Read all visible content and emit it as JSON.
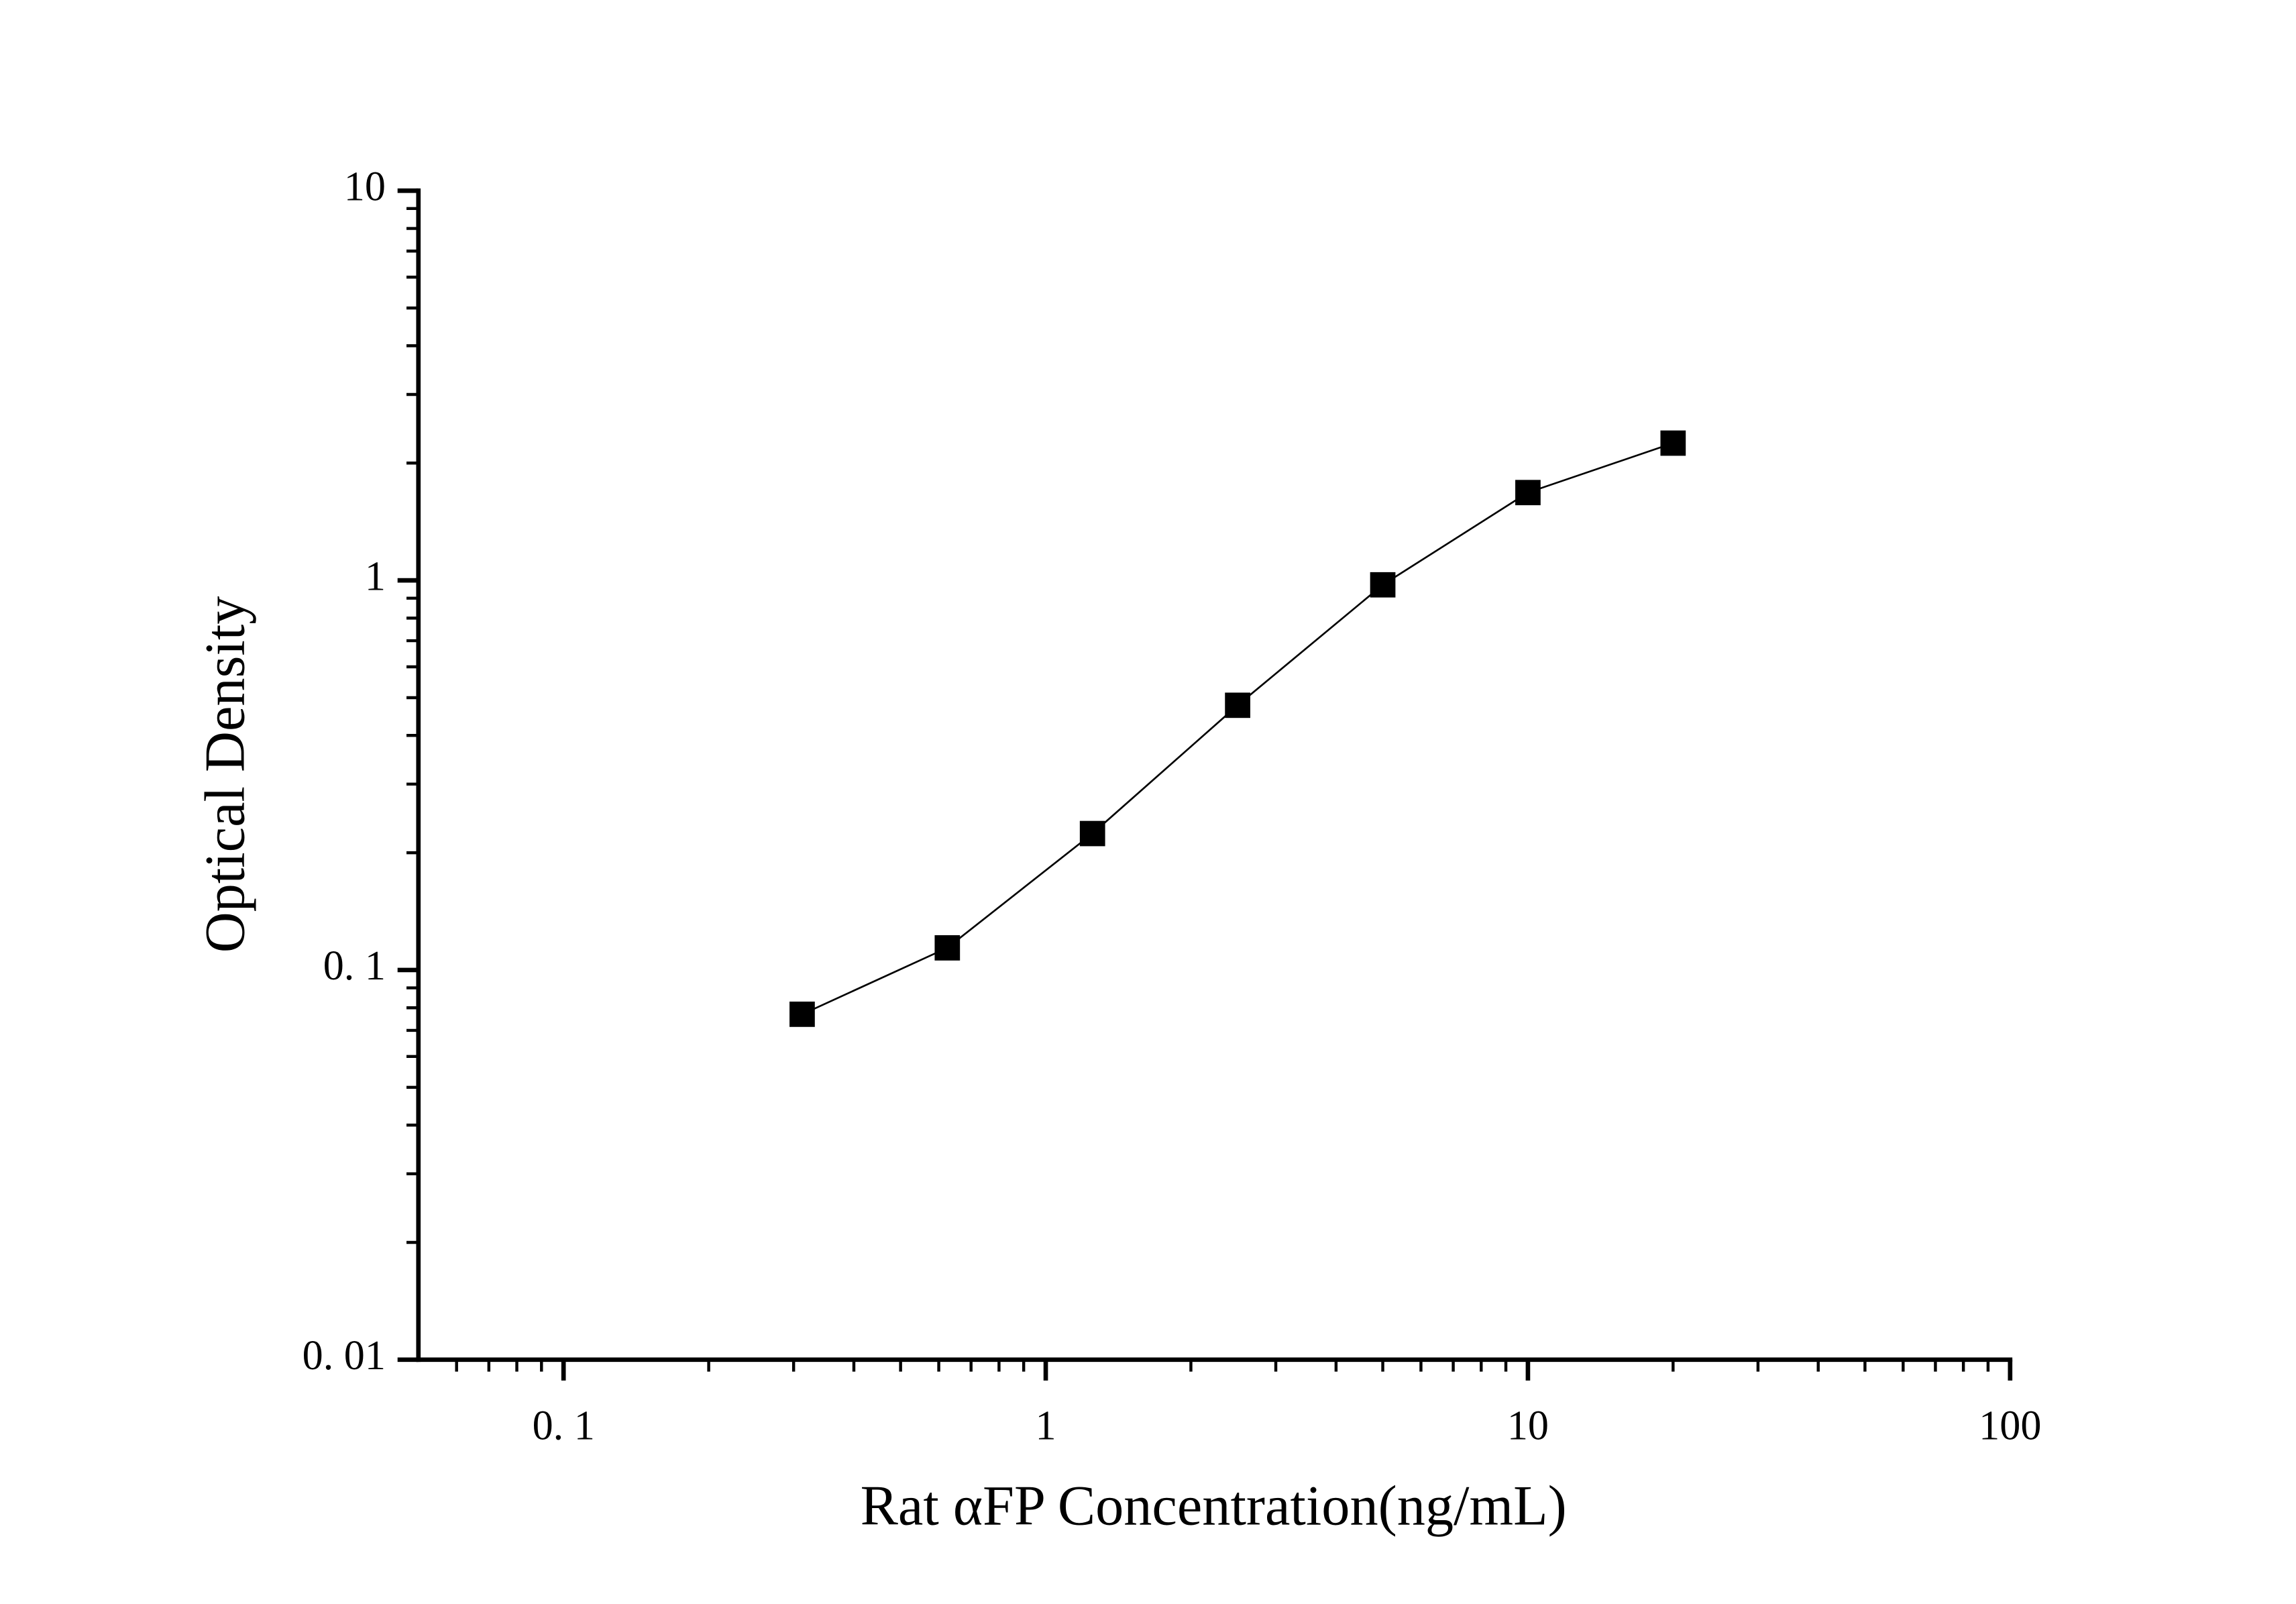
{
  "chart_data": {
    "type": "line",
    "x_label": "Rat αFP Concentration(ng/mL)",
    "y_label": "Optical Density",
    "x": [
      0.3125,
      0.625,
      1.25,
      2.5,
      5,
      10,
      20
    ],
    "series": [
      {
        "name": "Optical Density",
        "color": "#000000",
        "values": [
          0.077,
          0.114,
          0.224,
          0.478,
          0.974,
          1.68,
          2.25
        ]
      }
    ],
    "xlim": [
      0.05,
      100
    ],
    "ylim": [
      0.01,
      10
    ],
    "xticks": [
      {
        "value": 0.1,
        "label": "0. 1"
      },
      1,
      10,
      100
    ],
    "yticks": [
      {
        "value": 0.01,
        "label": "0. 01"
      },
      {
        "value": 0.1,
        "label": "0. 1"
      },
      1,
      10
    ],
    "xscale": "log",
    "yscale": "log",
    "grid": false,
    "marker": "square"
  }
}
